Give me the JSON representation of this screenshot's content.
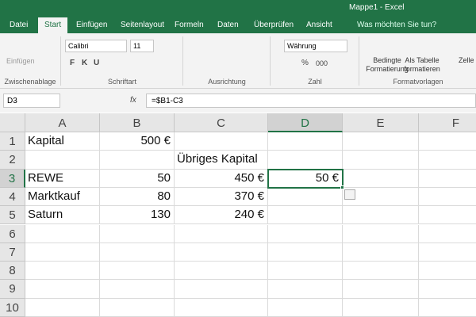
{
  "title_bar": {
    "title": "Mappe1 - Excel"
  },
  "tabs": [
    "Datei",
    "Start",
    "Einfügen",
    "Seitenlayout",
    "Formeln",
    "Daten",
    "Überprüfen",
    "Ansicht"
  ],
  "tell_me": "Was möchten Sie tun?",
  "ribbon": {
    "paste": "Einfügen",
    "font": "Calibri",
    "size": "11",
    "bold": "F",
    "italic": "K",
    "underline": "U",
    "number_format": "Währung",
    "percent": "%",
    "thousands": "000",
    "conditional": [
      "Bedingte",
      "Formatierung"
    ],
    "table": [
      "Als Tabelle",
      "formatieren"
    ],
    "cells": "Zelle",
    "groups": [
      "Zwischenablage",
      "Schriftart",
      "Ausrichtung",
      "Zahl",
      "Formatvorlagen"
    ]
  },
  "formula_bar": {
    "name_box": "D3",
    "fx": "fx",
    "formula": "=$B1-C3"
  },
  "sheet": {
    "columns": [
      "A",
      "B",
      "C",
      "D",
      "E",
      "F"
    ],
    "rows": [
      1,
      2,
      3,
      4,
      5,
      6,
      7,
      8,
      9,
      10
    ],
    "cells": [
      [
        "Kapital",
        "500 €",
        null,
        null
      ],
      [
        null,
        null,
        "Übriges Kapital",
        null
      ],
      [
        "REWE",
        "50",
        "450 €",
        "50 €"
      ],
      [
        "Marktkauf",
        "80",
        "370 €",
        null
      ],
      [
        "Saturn",
        "130",
        "240 €",
        null
      ]
    ]
  }
}
